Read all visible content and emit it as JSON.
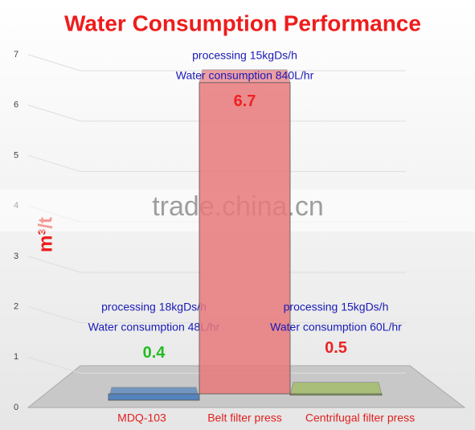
{
  "chart_data": {
    "type": "bar3d",
    "title": "Water Consumption Performance",
    "y_label": "m³/t",
    "categories": [
      "MDQ-103",
      "Belt filter press",
      "Centrifugal filter press"
    ],
    "values": [
      0.4,
      6.7,
      0.5
    ],
    "colors": [
      "#4f81bd",
      "#e8787a",
      "#9bbb59"
    ],
    "value_label_colors": [
      "#22bb22",
      "#ee2222",
      "#ee2222"
    ],
    "annotations": [
      [
        "processing 18kgDs/h",
        "Water consumption 48L/hr"
      ],
      [
        "processing 15kgDs/h",
        "Water consumption 840L/hr"
      ],
      [
        "processing 15kgDs/h",
        "Water consumption 60L/hr"
      ]
    ],
    "ylim": [
      0,
      7
    ],
    "yticks": [
      0,
      1,
      2,
      3,
      4,
      5,
      6,
      7
    ],
    "grid": true
  },
  "watermark": "trade.china.cn"
}
